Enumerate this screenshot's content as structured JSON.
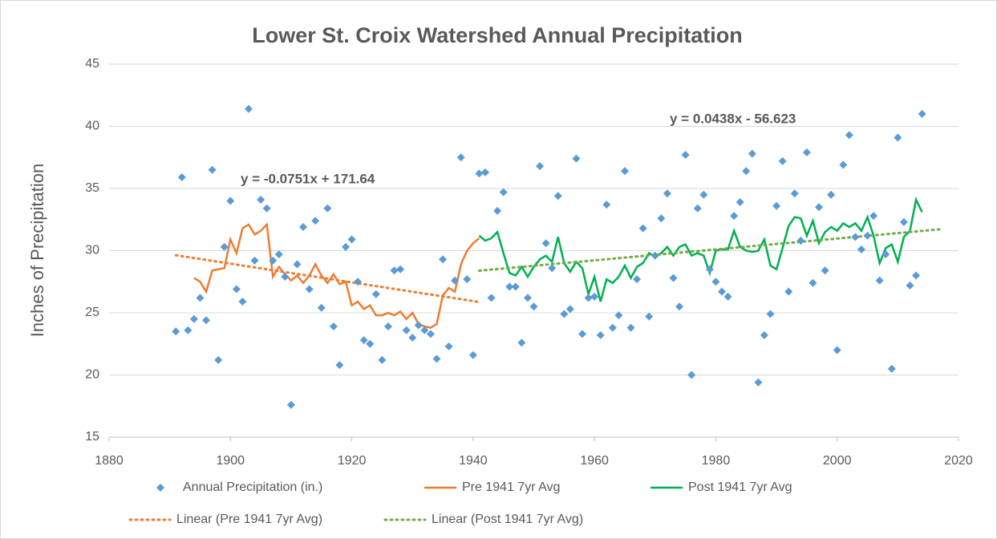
{
  "chart_data": {
    "type": "scatter",
    "title": "Lower St. Croix Watershed Annual Precipitation",
    "y_label": "Inches of Precipitation",
    "xlim": [
      1880,
      2020
    ],
    "xticks": [
      1880,
      1900,
      1920,
      1940,
      1960,
      1980,
      2000,
      2020
    ],
    "ylim": [
      15,
      45
    ],
    "yticks": [
      15,
      20,
      25,
      30,
      35,
      40,
      45
    ],
    "grid": true,
    "annotations": [
      "y = -0.0751x + 171.64",
      "y = 0.0438x - 56.623"
    ],
    "series": [
      {
        "name": "Annual Precipitation (in.)",
        "style": "marker",
        "color": "#5b9bd5",
        "x": [
          1891,
          1892,
          1893,
          1894,
          1895,
          1896,
          1897,
          1898,
          1899,
          1900,
          1901,
          1902,
          1903,
          1904,
          1905,
          1906,
          1907,
          1908,
          1909,
          1910,
          1911,
          1912,
          1913,
          1914,
          1915,
          1916,
          1917,
          1918,
          1919,
          1920,
          1921,
          1922,
          1923,
          1924,
          1925,
          1926,
          1927,
          1928,
          1929,
          1930,
          1931,
          1932,
          1933,
          1934,
          1935,
          1936,
          1937,
          1938,
          1939,
          1940,
          1941,
          1942,
          1943,
          1944,
          1945,
          1946,
          1947,
          1948,
          1949,
          1950,
          1951,
          1952,
          1953,
          1954,
          1955,
          1956,
          1957,
          1958,
          1959,
          1960,
          1961,
          1962,
          1963,
          1964,
          1965,
          1966,
          1967,
          1968,
          1969,
          1970,
          1971,
          1972,
          1973,
          1974,
          1975,
          1976,
          1977,
          1978,
          1979,
          1980,
          1981,
          1982,
          1983,
          1984,
          1985,
          1986,
          1987,
          1988,
          1989,
          1990,
          1991,
          1992,
          1993,
          1994,
          1995,
          1996,
          1997,
          1998,
          1999,
          2000,
          2001,
          2002,
          2003,
          2004,
          2005,
          2006,
          2007,
          2008,
          2009,
          2010,
          2011,
          2012,
          2013,
          2014
        ],
        "values": [
          23.5,
          35.9,
          23.6,
          24.5,
          26.2,
          24.4,
          36.5,
          21.2,
          30.3,
          34.0,
          26.9,
          25.9,
          41.4,
          29.2,
          34.1,
          33.4,
          29.2,
          29.7,
          27.9,
          17.6,
          28.9,
          31.9,
          26.9,
          32.4,
          25.4,
          33.4,
          23.9,
          20.8,
          30.3,
          30.9,
          27.5,
          22.8,
          22.5,
          26.5,
          21.2,
          23.9,
          28.4,
          28.5,
          23.6,
          23.0,
          24.0,
          23.6,
          23.3,
          21.3,
          29.3,
          22.3,
          27.6,
          37.5,
          27.7,
          21.6,
          36.2,
          36.3,
          26.2,
          33.2,
          34.7,
          27.1,
          27.1,
          22.6,
          26.2,
          25.5,
          36.8,
          30.6,
          28.6,
          34.4,
          24.9,
          25.3,
          37.4,
          23.3,
          26.2,
          26.3,
          23.2,
          33.7,
          23.8,
          24.8,
          36.4,
          23.8,
          27.7,
          31.8,
          24.7,
          29.6,
          32.6,
          34.6,
          27.8,
          25.5,
          37.7,
          20.0,
          33.4,
          34.5,
          28.5,
          27.5,
          26.7,
          26.3,
          32.8,
          33.9,
          36.4,
          37.8,
          19.4,
          23.2,
          24.9,
          33.6,
          37.2,
          26.7,
          34.6,
          30.8,
          37.9,
          27.4,
          33.5,
          28.4,
          34.5,
          22.0,
          36.9,
          39.3,
          31.1,
          30.1,
          31.2,
          32.8,
          27.6,
          29.7,
          20.5,
          39.1,
          32.3,
          27.2,
          28.0,
          41.0
        ]
      },
      {
        "name": "Pre 1941 7yr Avg",
        "style": "solid",
        "color": "#ed7d31",
        "x": [
          1894,
          1895,
          1896,
          1897,
          1898,
          1899,
          1900,
          1901,
          1902,
          1903,
          1904,
          1905,
          1906,
          1907,
          1908,
          1909,
          1910,
          1911,
          1912,
          1913,
          1914,
          1915,
          1916,
          1917,
          1918,
          1919,
          1920,
          1921,
          1922,
          1923,
          1924,
          1925,
          1926,
          1927,
          1928,
          1929,
          1930,
          1931,
          1932,
          1933,
          1934,
          1935,
          1936,
          1937,
          1938,
          1939,
          1940,
          1941
        ],
        "values": [
          27.8,
          27.5,
          26.7,
          28.4,
          28.5,
          28.6,
          30.9,
          29.8,
          31.8,
          32.1,
          31.3,
          31.6,
          32.1,
          27.9,
          28.7,
          28.1,
          27.6,
          28.0,
          27.4,
          28.0,
          28.9,
          28.0,
          27.4,
          28.1,
          27.3,
          27.5,
          25.6,
          25.9,
          25.3,
          25.6,
          24.8,
          24.8,
          25.0,
          24.8,
          25.1,
          24.5,
          25.0,
          24.1,
          23.9,
          23.8,
          24.1,
          26.4,
          27.0,
          26.7,
          28.9,
          30.0,
          30.6,
          31.0
        ]
      },
      {
        "name": "Post 1941 7yr Avg",
        "style": "solid",
        "color": "#00b050",
        "x": [
          1941,
          1942,
          1943,
          1944,
          1945,
          1946,
          1947,
          1948,
          1949,
          1950,
          1951,
          1952,
          1953,
          1954,
          1955,
          1956,
          1957,
          1958,
          1959,
          1960,
          1961,
          1962,
          1963,
          1964,
          1965,
          1966,
          1967,
          1968,
          1969,
          1970,
          1971,
          1972,
          1973,
          1974,
          1975,
          1976,
          1977,
          1978,
          1979,
          1980,
          1981,
          1982,
          1983,
          1984,
          1985,
          1986,
          1987,
          1988,
          1989,
          1990,
          1991,
          1992,
          1993,
          1994,
          1995,
          1996,
          1997,
          1998,
          1999,
          2000,
          2001,
          2002,
          2003,
          2004,
          2005,
          2006,
          2007,
          2008,
          2009,
          2010,
          2011,
          2012,
          2013,
          2014
        ],
        "values": [
          31.2,
          30.8,
          31.0,
          31.5,
          29.8,
          28.2,
          28.0,
          28.7,
          27.9,
          28.7,
          29.3,
          29.6,
          29.1,
          31.1,
          29.0,
          28.3,
          29.1,
          28.6,
          26.5,
          27.9,
          25.9,
          27.7,
          27.4,
          27.9,
          28.8,
          27.8,
          28.7,
          29.0,
          29.8,
          29.5,
          29.8,
          30.3,
          29.6,
          30.3,
          30.5,
          29.6,
          29.8,
          29.6,
          28.2,
          30.0,
          30.1,
          30.1,
          31.6,
          30.3,
          30.0,
          29.9,
          30.0,
          30.9,
          28.8,
          28.5,
          30.2,
          32.0,
          32.7,
          32.6,
          31.2,
          32.4,
          30.6,
          31.5,
          31.9,
          31.6,
          32.2,
          31.9,
          32.2,
          31.6,
          32.7,
          31.2,
          29.0,
          30.2,
          30.5,
          29.1,
          31.1,
          31.6,
          34.1,
          33.1
        ]
      },
      {
        "name": "Linear (Pre 1941 7yr Avg)",
        "style": "dotted",
        "color": "#ed7d31",
        "x": [
          1891,
          1941
        ],
        "values": [
          29.63,
          25.87
        ]
      },
      {
        "name": "Linear (Post 1941 7yr Avg)",
        "style": "dotted",
        "color": "#70ad47",
        "x": [
          1941,
          2017
        ],
        "values": [
          28.39,
          31.72
        ]
      }
    ]
  }
}
